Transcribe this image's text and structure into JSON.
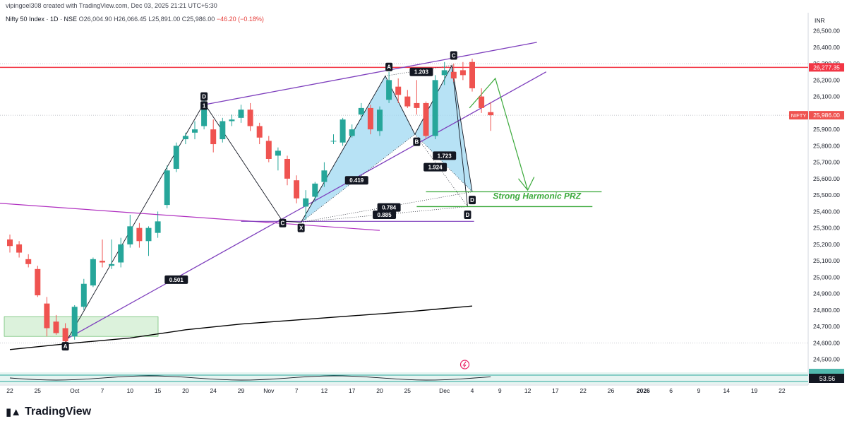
{
  "header": {
    "created_by": "vipingoel308 created with TradingView.com, Dec 03, 2025 21:21 UTC+5:30",
    "symbol": "Nifty 50 Index · 1D · NSE",
    "open": "O26,004.90",
    "high": "H26,066.45",
    "low": "L25,891.00",
    "close": "C25,986.00",
    "change": "−46.20 (−0.18%)"
  },
  "footer": {
    "brand": "TradingView"
  },
  "colors": {
    "bull": "#26a69a",
    "bear": "#ef5350",
    "pattern_line": "#7e3fbd",
    "pattern_fill": "#9fd8f2",
    "projection": "#3aa93a",
    "resistance": "#f23645",
    "sma": "#000000"
  },
  "chart_data": {
    "type": "candlestick",
    "currency": "INR",
    "ylim": [
      24450,
      26640
    ],
    "yticks": [
      26500,
      26400,
      26300,
      26200,
      26100,
      26000,
      25900,
      25800,
      25700,
      25600,
      25500,
      25400,
      25300,
      25200,
      25100,
      25000,
      24900,
      24800,
      24700,
      24600,
      24500
    ],
    "xticks": [
      {
        "label": "22",
        "t": 0
      },
      {
        "label": "25",
        "t": 3
      },
      {
        "label": "Oct",
        "t": 7
      },
      {
        "label": "7",
        "t": 10
      },
      {
        "label": "10",
        "t": 13
      },
      {
        "label": "15",
        "t": 16
      },
      {
        "label": "20",
        "t": 19
      },
      {
        "label": "24",
        "t": 22
      },
      {
        "label": "29",
        "t": 25
      },
      {
        "label": "Nov",
        "t": 28
      },
      {
        "label": "7",
        "t": 31
      },
      {
        "label": "12",
        "t": 34
      },
      {
        "label": "17",
        "t": 37
      },
      {
        "label": "20",
        "t": 40
      },
      {
        "label": "25",
        "t": 43
      },
      {
        "label": "Dec",
        "t": 47
      },
      {
        "label": "4",
        "t": 50
      },
      {
        "label": "9",
        "t": 53
      },
      {
        "label": "12",
        "t": 56
      },
      {
        "label": "17",
        "t": 59
      },
      {
        "label": "22",
        "t": 62
      },
      {
        "label": "26",
        "t": 65
      },
      {
        "label": "2026",
        "t": 68.5
      },
      {
        "label": "6",
        "t": 71.5
      },
      {
        "label": "9",
        "t": 74.5
      },
      {
        "label": "14",
        "t": 77.5
      },
      {
        "label": "19",
        "t": 80.5
      },
      {
        "label": "22",
        "t": 83.5
      }
    ],
    "candles": [
      [
        25230,
        25260,
        25150,
        25190
      ],
      [
        25200,
        25220,
        25120,
        25150
      ],
      [
        25110,
        25140,
        25060,
        25080
      ],
      [
        25050,
        25070,
        24880,
        24890
      ],
      [
        24840,
        24880,
        24640,
        24690
      ],
      [
        24730,
        24770,
        24650,
        24660
      ],
      [
        24690,
        24720,
        24590,
        24610
      ],
      [
        24640,
        24830,
        24620,
        24820
      ],
      [
        24820,
        24990,
        24800,
        24960
      ],
      [
        24950,
        25120,
        24940,
        25110
      ],
      [
        25100,
        25230,
        25060,
        25090
      ],
      [
        25070,
        25230,
        25050,
        25080
      ],
      [
        25090,
        25240,
        25060,
        25200
      ],
      [
        25200,
        25380,
        25180,
        25310
      ],
      [
        25300,
        25330,
        25180,
        25220
      ],
      [
        25220,
        25310,
        25130,
        25300
      ],
      [
        25270,
        25400,
        25240,
        25340
      ],
      [
        25440,
        25680,
        25420,
        25650
      ],
      [
        25660,
        25820,
        25640,
        25800
      ],
      [
        25840,
        25880,
        25810,
        25860
      ],
      [
        25880,
        25950,
        25840,
        25900
      ],
      [
        25920,
        26110,
        25900,
        26060
      ],
      [
        25900,
        25960,
        25760,
        25810
      ],
      [
        25840,
        25970,
        25820,
        25950
      ],
      [
        25950,
        25990,
        25920,
        25960
      ],
      [
        25970,
        26050,
        25940,
        26020
      ],
      [
        26020,
        26060,
        25890,
        25920
      ],
      [
        25920,
        25940,
        25810,
        25850
      ],
      [
        25830,
        25860,
        25700,
        25720
      ],
      [
        25740,
        25790,
        25650,
        25770
      ],
      [
        25720,
        25740,
        25560,
        25600
      ],
      [
        25590,
        25620,
        25450,
        25480
      ],
      [
        25430,
        25530,
        25350,
        25480
      ],
      [
        25490,
        25580,
        25460,
        25570
      ],
      [
        25580,
        25700,
        25550,
        25650
      ],
      [
        25830,
        25870,
        25810,
        25830
      ],
      [
        25820,
        25970,
        25800,
        25960
      ],
      [
        25860,
        25930,
        25850,
        25900
      ],
      [
        25990,
        26060,
        25960,
        26030
      ],
      [
        26030,
        26050,
        25870,
        25900
      ],
      [
        25890,
        26040,
        25860,
        26020
      ],
      [
        26080,
        26250,
        26060,
        26200
      ],
      [
        26160,
        26210,
        26060,
        26110
      ],
      [
        26100,
        26140,
        26030,
        26040
      ],
      [
        26060,
        26200,
        25990,
        26030
      ],
      [
        26060,
        26070,
        25840,
        25860
      ],
      [
        25860,
        26230,
        25840,
        26200
      ],
      [
        26230,
        26310,
        26170,
        26260
      ],
      [
        26250,
        26300,
        26190,
        26210
      ],
      [
        26260,
        26310,
        26200,
        26230
      ],
      [
        26310,
        26330,
        26130,
        26150
      ],
      [
        26100,
        26150,
        26000,
        26030
      ],
      [
        26004.9,
        26066.45,
        25891,
        25986
      ]
    ],
    "sma": [
      [
        0,
        24560
      ],
      [
        7,
        24600
      ],
      [
        13,
        24630
      ],
      [
        19,
        24680
      ],
      [
        25,
        24715
      ],
      [
        31,
        24740
      ],
      [
        37,
        24765
      ],
      [
        43,
        24790
      ],
      [
        47,
        24810
      ],
      [
        50,
        24825
      ]
    ],
    "price_label": {
      "name": "NIFTY",
      "value": "25,986.00",
      "level": 25986
    },
    "resistance": {
      "value": "26,277.35",
      "level": 26277.35
    },
    "top_partial_tick": "26,300.00",
    "oscillator_value": "53.56",
    "harmonic_labels": [
      {
        "text": "A",
        "t": 6,
        "v": 24580
      },
      {
        "text": "D",
        "t": 21,
        "v": 26100
      },
      {
        "text": "1",
        "t": 21,
        "v": 26045
      },
      {
        "text": "C",
        "t": 29.5,
        "v": 25330
      },
      {
        "text": "X",
        "t": 31.5,
        "v": 25300
      },
      {
        "text": "A",
        "t": 41,
        "v": 26280
      },
      {
        "text": "B",
        "t": 44,
        "v": 25825
      },
      {
        "text": "C",
        "t": 48,
        "v": 26350
      },
      {
        "text": "D",
        "t": 50,
        "v": 25470
      },
      {
        "text": "D",
        "t": 49.5,
        "v": 25380
      }
    ],
    "ratio_labels": [
      {
        "text": "0.501",
        "t": 18,
        "v": 24985
      },
      {
        "text": "0.419",
        "t": 37.5,
        "v": 25590
      },
      {
        "text": "1.203",
        "t": 44.5,
        "v": 26250
      },
      {
        "text": "1.723",
        "t": 47,
        "v": 25740
      },
      {
        "text": "1.924",
        "t": 46,
        "v": 25670
      },
      {
        "text": "0.784",
        "t": 41,
        "v": 25425
      },
      {
        "text": "0.885",
        "t": 40.5,
        "v": 25380
      }
    ],
    "annotation": {
      "text": "Strong Harmonic PRZ",
      "t": 57,
      "v": 25490
    }
  }
}
